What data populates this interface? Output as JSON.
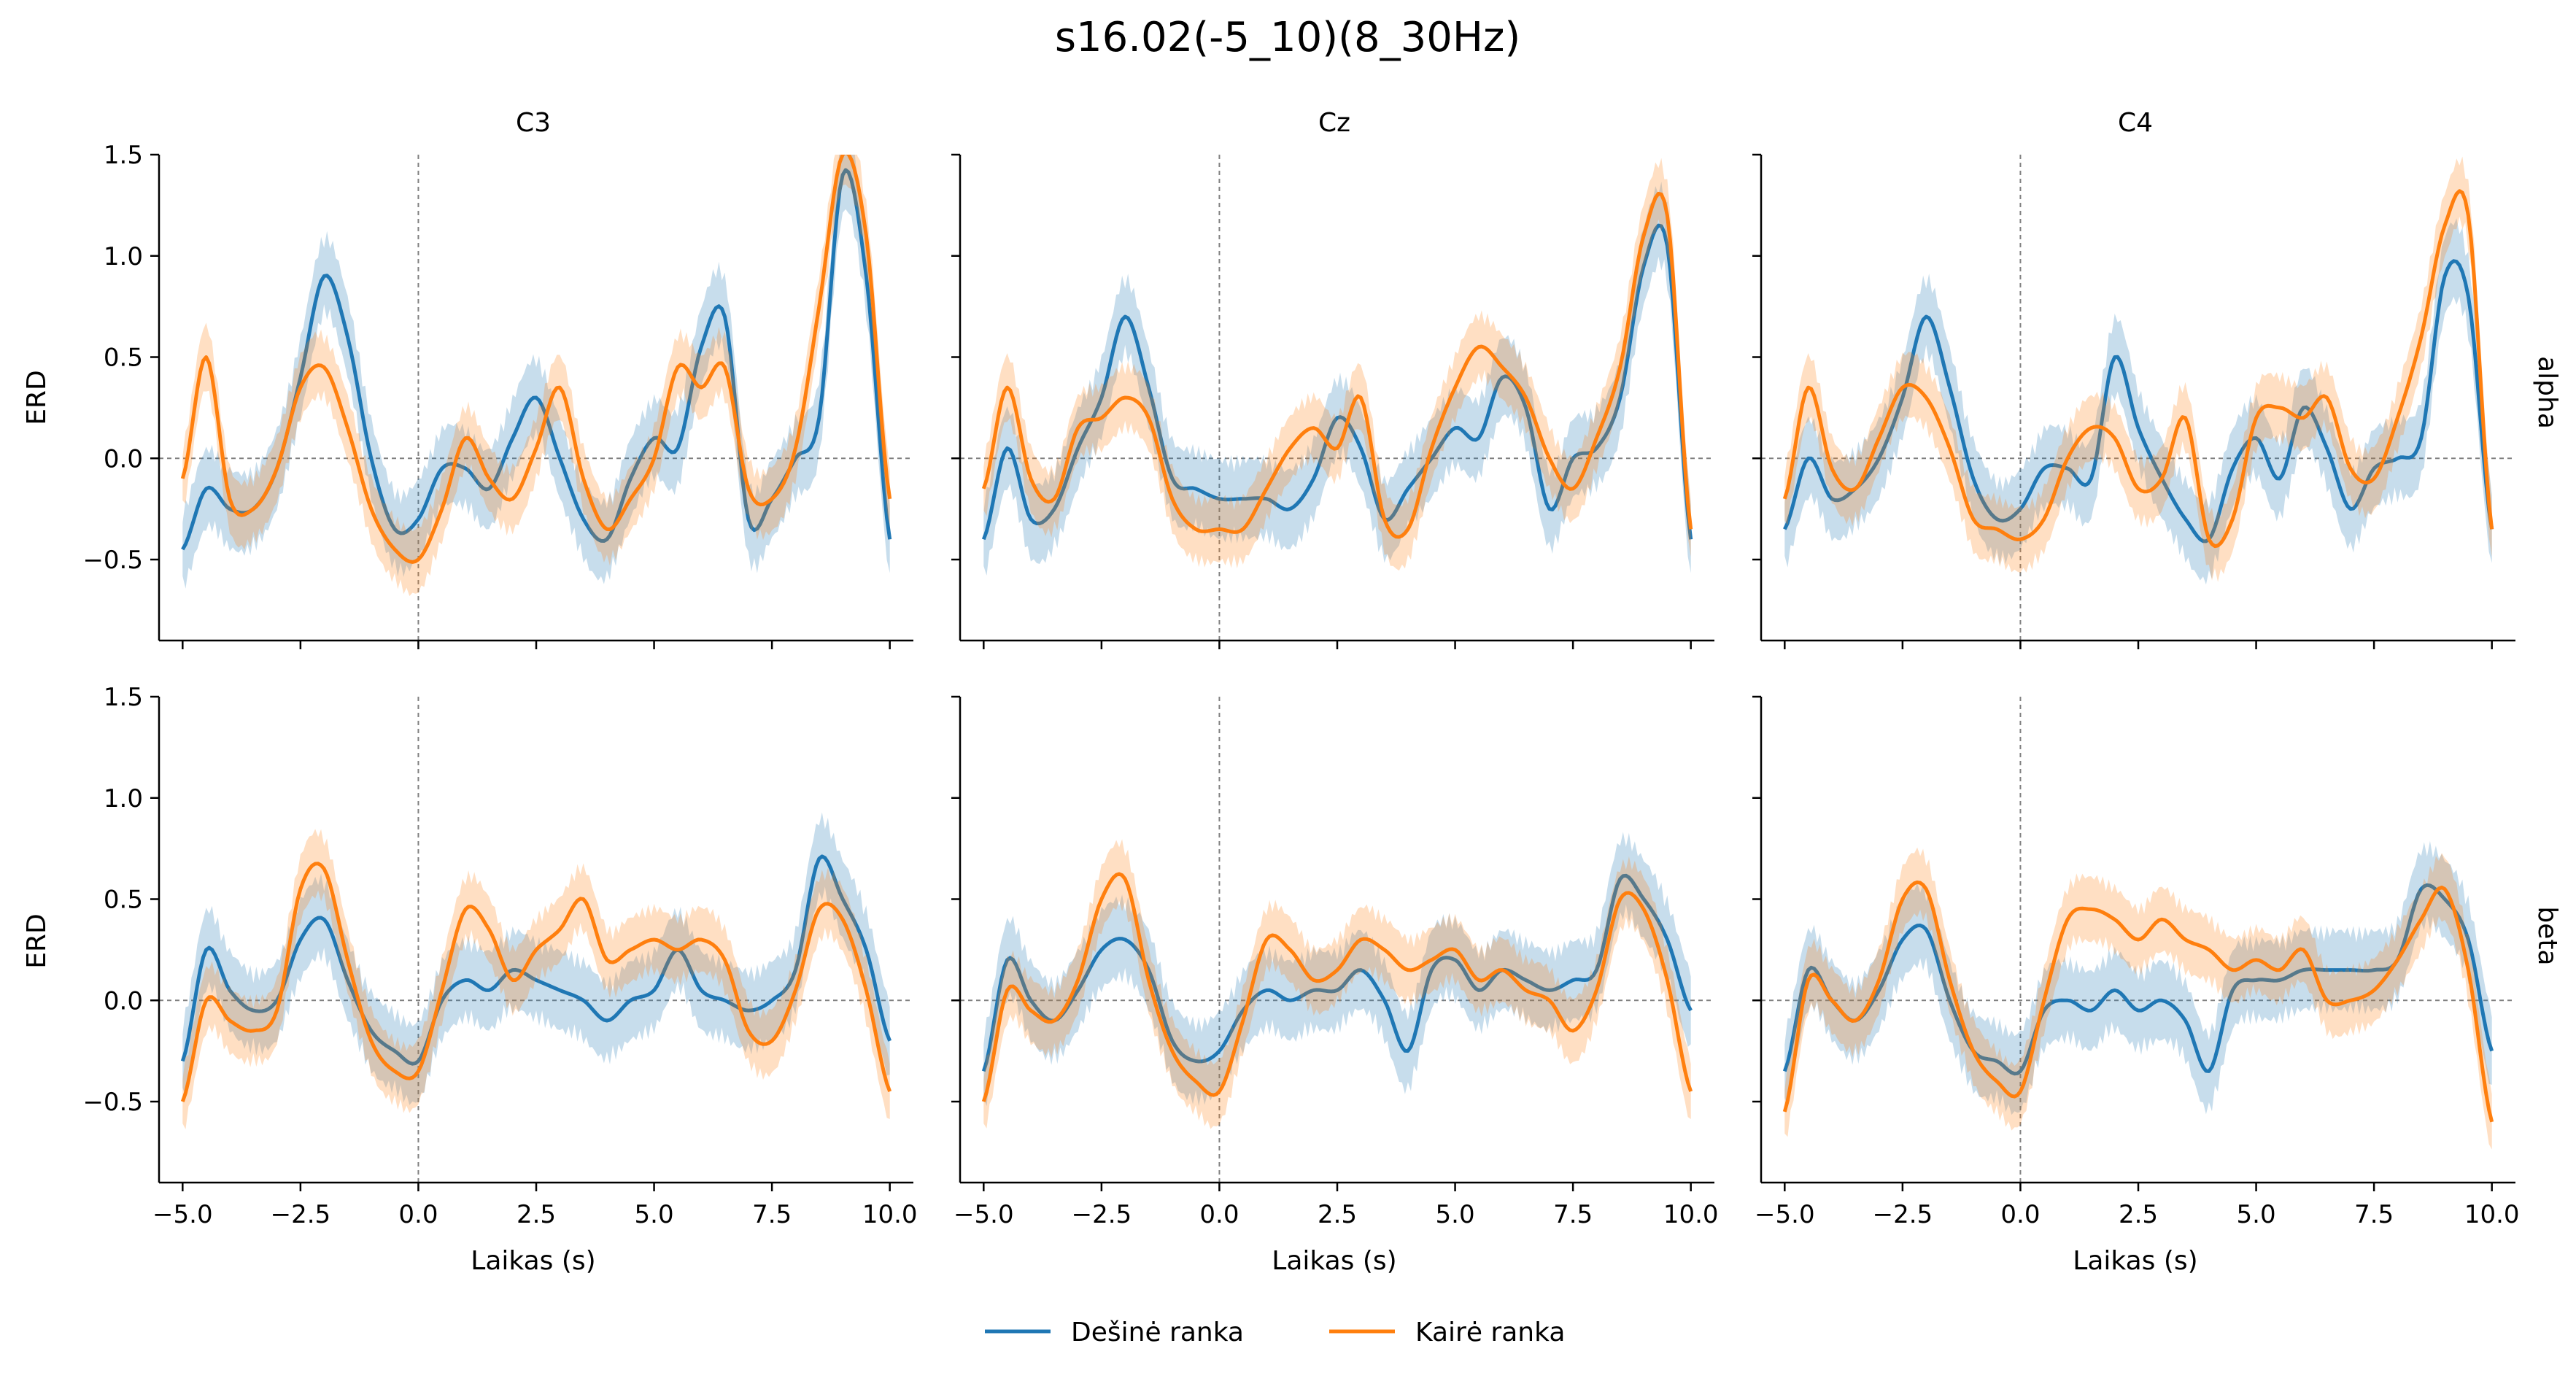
{
  "figure": {
    "title": "s16.02(-5_10)(8_30Hz)",
    "xlabel": "Laikas (s)",
    "ylabel": "ERD",
    "col_titles": [
      "C3",
      "Cz",
      "C4"
    ],
    "row_labels": [
      "alpha",
      "beta"
    ],
    "x_ticks": [
      "−5.0",
      "−2.5",
      "0.0",
      "2.5",
      "5.0",
      "7.5",
      "10.0"
    ],
    "y_ticks": [
      "−0.5",
      "0.0",
      "0.5",
      "1.0",
      "1.5"
    ]
  },
  "legend": {
    "items": [
      {
        "label": "Dešinė ranka",
        "color": "#1f77b4"
      },
      {
        "label": "Kairė ranka",
        "color": "#ff7f0e"
      }
    ],
    "placement": "bottom-center"
  },
  "chart_data": {
    "type": "line",
    "xlabel": "Laikas (s)",
    "ylabel": "ERD",
    "xlim": [
      -5.5,
      10.5
    ],
    "ylim": [
      -0.9,
      1.5
    ],
    "x_ticks": [
      -5,
      -2.5,
      0,
      2.5,
      5,
      7.5,
      10
    ],
    "y_ticks": [
      -0.5,
      0,
      0.5,
      1.0,
      1.5
    ],
    "reference_lines": {
      "x": 0,
      "y": 0,
      "style": "dashed"
    },
    "shaded_band": "variability band around each series",
    "x": [
      -5.0,
      -4.5,
      -4.0,
      -3.5,
      -3.0,
      -2.5,
      -2.0,
      -1.5,
      -1.0,
      -0.5,
      0.0,
      0.5,
      1.0,
      1.5,
      2.0,
      2.5,
      3.0,
      3.5,
      4.0,
      4.5,
      5.0,
      5.5,
      6.0,
      6.5,
      7.0,
      7.5,
      8.0,
      8.5,
      9.0,
      9.5,
      10.0
    ],
    "panels": [
      {
        "channel": "C3",
        "band": "alpha",
        "series": [
          {
            "name": "Dešinė ranka",
            "values": [
              -0.45,
              -0.15,
              -0.25,
              -0.25,
              -0.05,
              0.4,
              0.9,
              0.6,
              0.0,
              -0.35,
              -0.3,
              -0.05,
              -0.05,
              -0.15,
              0.1,
              0.3,
              0.0,
              -0.3,
              -0.4,
              -0.1,
              0.1,
              0.05,
              0.55,
              0.7,
              -0.3,
              -0.2,
              0.0,
              0.2,
              1.4,
              0.9,
              -0.4
            ]
          },
          {
            "name": "Kairė ranka",
            "values": [
              -0.1,
              0.5,
              -0.2,
              -0.25,
              -0.05,
              0.35,
              0.45,
              0.15,
              -0.25,
              -0.45,
              -0.5,
              -0.25,
              0.1,
              -0.1,
              -0.2,
              0.05,
              0.35,
              -0.1,
              -0.35,
              -0.2,
              0.0,
              0.45,
              0.35,
              0.45,
              -0.15,
              -0.2,
              0.05,
              0.75,
              1.5,
              1.1,
              -0.2
            ]
          }
        ]
      },
      {
        "channel": "Cz",
        "band": "alpha",
        "series": [
          {
            "name": "Dešinė ranka",
            "values": [
              -0.4,
              0.05,
              -0.3,
              -0.25,
              0.05,
              0.3,
              0.7,
              0.35,
              -0.1,
              -0.15,
              -0.2,
              -0.2,
              -0.2,
              -0.25,
              -0.1,
              0.2,
              0.05,
              -0.3,
              -0.15,
              0.0,
              0.15,
              0.1,
              0.4,
              0.25,
              -0.25,
              0.0,
              0.05,
              0.3,
              0.95,
              1.05,
              -0.4
            ]
          },
          {
            "name": "Kairė ranka",
            "values": [
              -0.15,
              0.35,
              -0.1,
              -0.2,
              0.15,
              0.2,
              0.3,
              0.2,
              -0.2,
              -0.35,
              -0.35,
              -0.35,
              -0.15,
              0.05,
              0.15,
              0.05,
              0.3,
              -0.3,
              -0.35,
              0.05,
              0.35,
              0.55,
              0.45,
              0.3,
              0.0,
              -0.15,
              0.1,
              0.45,
              1.1,
              1.2,
              -0.35
            ]
          }
        ]
      },
      {
        "channel": "C4",
        "band": "alpha",
        "series": [
          {
            "name": "Dešinė ranka",
            "values": [
              -0.35,
              0.0,
              -0.2,
              -0.15,
              0.0,
              0.3,
              0.7,
              0.35,
              -0.1,
              -0.3,
              -0.25,
              -0.05,
              -0.05,
              -0.1,
              0.5,
              0.15,
              -0.1,
              -0.3,
              -0.4,
              -0.05,
              0.1,
              -0.1,
              0.25,
              0.05,
              -0.25,
              -0.05,
              0.0,
              0.1,
              0.9,
              0.8,
              -0.35
            ]
          },
          {
            "name": "Kairė ranka",
            "values": [
              -0.2,
              0.35,
              -0.05,
              -0.15,
              0.1,
              0.35,
              0.3,
              0.05,
              -0.3,
              -0.35,
              -0.4,
              -0.3,
              0.0,
              0.15,
              0.1,
              -0.15,
              -0.1,
              0.2,
              -0.4,
              -0.3,
              0.2,
              0.25,
              0.2,
              0.3,
              -0.05,
              -0.1,
              0.2,
              0.6,
              1.15,
              1.2,
              -0.35
            ]
          }
        ]
      },
      {
        "channel": "C3",
        "band": "beta",
        "series": [
          {
            "name": "Dešinė ranka",
            "values": [
              -0.3,
              0.25,
              0.05,
              -0.05,
              0.0,
              0.3,
              0.4,
              0.1,
              -0.15,
              -0.25,
              -0.3,
              0.0,
              0.1,
              0.05,
              0.15,
              0.1,
              0.05,
              0.0,
              -0.1,
              0.0,
              0.05,
              0.25,
              0.05,
              0.0,
              -0.05,
              0.0,
              0.15,
              0.7,
              0.5,
              0.25,
              -0.2
            ]
          },
          {
            "name": "Kairė ranka",
            "values": [
              -0.5,
              0.0,
              -0.1,
              -0.15,
              -0.05,
              0.55,
              0.65,
              0.2,
              -0.2,
              -0.35,
              -0.35,
              0.05,
              0.45,
              0.35,
              0.1,
              0.25,
              0.35,
              0.5,
              0.2,
              0.25,
              0.3,
              0.25,
              0.3,
              0.2,
              -0.15,
              -0.2,
              0.05,
              0.45,
              0.4,
              0.05,
              -0.45
            ]
          }
        ]
      },
      {
        "channel": "Cz",
        "band": "beta",
        "series": [
          {
            "name": "Dešinė ranka",
            "values": [
              -0.35,
              0.2,
              0.0,
              -0.1,
              0.05,
              0.25,
              0.3,
              0.15,
              -0.2,
              -0.3,
              -0.25,
              -0.05,
              0.05,
              0.0,
              0.05,
              0.05,
              0.15,
              0.0,
              -0.25,
              0.15,
              0.2,
              0.05,
              0.15,
              0.1,
              0.05,
              0.1,
              0.15,
              0.6,
              0.5,
              0.3,
              -0.05
            ]
          },
          {
            "name": "Kairė ranka",
            "values": [
              -0.5,
              0.05,
              -0.05,
              -0.1,
              0.1,
              0.5,
              0.6,
              0.1,
              -0.25,
              -0.4,
              -0.45,
              -0.1,
              0.3,
              0.25,
              0.1,
              0.15,
              0.3,
              0.25,
              0.15,
              0.2,
              0.25,
              0.1,
              0.15,
              0.05,
              0.0,
              -0.15,
              0.05,
              0.5,
              0.45,
              0.1,
              -0.45
            ]
          }
        ]
      },
      {
        "channel": "C4",
        "band": "beta",
        "series": [
          {
            "name": "Dešinė ranka",
            "values": [
              -0.35,
              0.15,
              0.0,
              -0.1,
              0.05,
              0.3,
              0.35,
              0.0,
              -0.25,
              -0.3,
              -0.35,
              -0.05,
              0.0,
              -0.05,
              0.05,
              -0.05,
              0.0,
              -0.1,
              -0.35,
              0.05,
              0.1,
              0.1,
              0.15,
              0.15,
              0.15,
              0.15,
              0.2,
              0.55,
              0.5,
              0.3,
              -0.25
            ]
          },
          {
            "name": "Kairė ranka",
            "values": [
              -0.55,
              0.1,
              0.0,
              -0.1,
              0.1,
              0.5,
              0.55,
              0.1,
              -0.25,
              -0.4,
              -0.45,
              0.0,
              0.4,
              0.45,
              0.4,
              0.3,
              0.4,
              0.3,
              0.25,
              0.15,
              0.2,
              0.15,
              0.25,
              0.0,
              0.0,
              0.05,
              0.2,
              0.4,
              0.55,
              0.15,
              -0.6
            ]
          }
        ]
      }
    ]
  }
}
